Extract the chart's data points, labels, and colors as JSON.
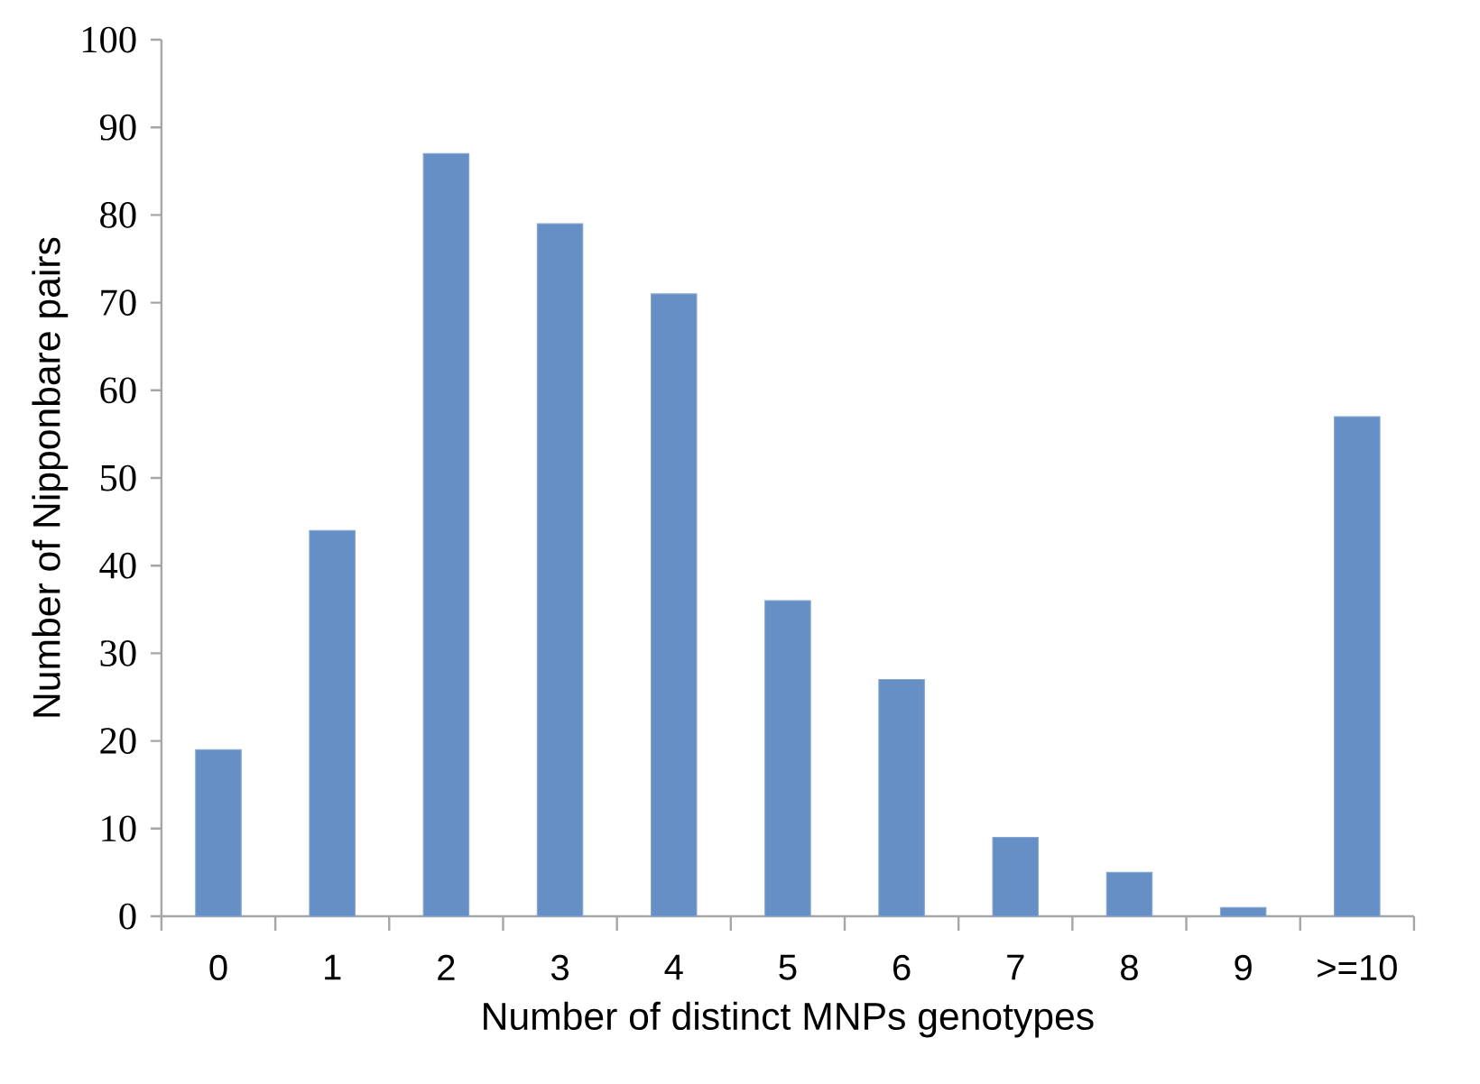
{
  "chart_data": {
    "type": "bar",
    "xlabel": "Number of distinct MNPs genotypes",
    "ylabel": "Number of  Nipponbare  pairs",
    "categories": [
      "0",
      "1",
      "2",
      "3",
      "4",
      "5",
      "6",
      "7",
      "8",
      "9",
      ">=10"
    ],
    "values": [
      19,
      44,
      87,
      79,
      71,
      36,
      27,
      9,
      5,
      1,
      57
    ],
    "color": "#6690c5",
    "ylim": [
      0,
      100
    ],
    "yticks": [
      0,
      10,
      20,
      30,
      40,
      50,
      60,
      70,
      80,
      90,
      100
    ]
  }
}
